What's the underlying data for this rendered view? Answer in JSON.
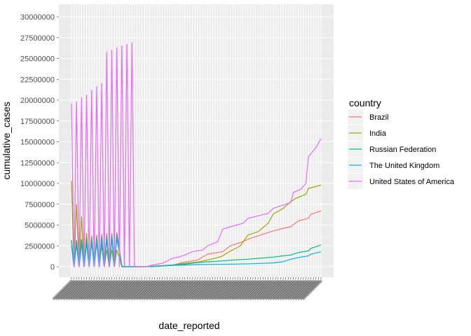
{
  "chart_data": {
    "type": "line",
    "xlabel": "date_reported",
    "ylabel": "cumulative_cases",
    "ylim": [
      0,
      30000000
    ],
    "yticks": [
      0,
      2500000,
      5000000,
      7500000,
      10000000,
      12500000,
      15000000,
      17500000,
      20000000,
      22500000,
      25000000,
      27500000,
      30000000
    ],
    "x_axis_note": "discrete date axis; ~100 tick labels overlap illegibly",
    "x_count": 100,
    "grid": true,
    "legend": {
      "title": "country",
      "placement": "right"
    },
    "series": [
      {
        "name": "Brazil",
        "color": "#F8766D",
        "points": [
          [
            0,
            3000000
          ],
          [
            1,
            0
          ],
          [
            2,
            3200000
          ],
          [
            3,
            0
          ],
          [
            4,
            3300000
          ],
          [
            5,
            0
          ],
          [
            6,
            3500000
          ],
          [
            7,
            0
          ],
          [
            8,
            3700000
          ],
          [
            9,
            0
          ],
          [
            10,
            3800000
          ],
          [
            11,
            0
          ],
          [
            12,
            3900000
          ],
          [
            13,
            0
          ],
          [
            14,
            4000000
          ],
          [
            15,
            0
          ],
          [
            16,
            4000000
          ],
          [
            17,
            0
          ],
          [
            18,
            4100000
          ],
          [
            20,
            0
          ],
          [
            27,
            0
          ],
          [
            32,
            30000
          ],
          [
            40,
            150000
          ],
          [
            44,
            500000
          ],
          [
            50,
            800000
          ],
          [
            54,
            1500000
          ],
          [
            60,
            1800000
          ],
          [
            63,
            2500000
          ],
          [
            68,
            3000000
          ],
          [
            70,
            3300000
          ],
          [
            74,
            3700000
          ],
          [
            80,
            4300000
          ],
          [
            84,
            4600000
          ],
          [
            87,
            4800000
          ],
          [
            90,
            5500000
          ],
          [
            94,
            5800000
          ],
          [
            95,
            6300000
          ],
          [
            99,
            6700000
          ]
        ]
      },
      {
        "name": "India",
        "color": "#A3A500",
        "points": [
          [
            0,
            10300000
          ],
          [
            1,
            0
          ],
          [
            2,
            7500000
          ],
          [
            3,
            0
          ],
          [
            4,
            6000000
          ],
          [
            5,
            0
          ],
          [
            6,
            4000000
          ],
          [
            7,
            0
          ],
          [
            8,
            3500000
          ],
          [
            9,
            0
          ],
          [
            10,
            3000000
          ],
          [
            11,
            0
          ],
          [
            12,
            2500000
          ],
          [
            13,
            0
          ],
          [
            14,
            2000000
          ],
          [
            15,
            0
          ],
          [
            16,
            2000000
          ],
          [
            17,
            0
          ],
          [
            18,
            2000000
          ],
          [
            20,
            0
          ],
          [
            27,
            0
          ],
          [
            34,
            100000
          ],
          [
            40,
            200000
          ],
          [
            45,
            400000
          ],
          [
            50,
            550000
          ],
          [
            54,
            800000
          ],
          [
            58,
            1100000
          ],
          [
            60,
            1300000
          ],
          [
            62,
            1700000
          ],
          [
            67,
            2500000
          ],
          [
            70,
            3800000
          ],
          [
            74,
            4200000
          ],
          [
            78,
            5200000
          ],
          [
            80,
            6300000
          ],
          [
            84,
            7000000
          ],
          [
            87,
            7800000
          ],
          [
            89,
            8200000
          ],
          [
            93,
            8700000
          ],
          [
            94,
            9400000
          ],
          [
            99,
            9800000
          ]
        ]
      },
      {
        "name": "Russian Federation",
        "color": "#00BF7D",
        "points": [
          [
            0,
            3200000
          ],
          [
            1,
            0
          ],
          [
            2,
            3100000
          ],
          [
            3,
            0
          ],
          [
            4,
            3200000
          ],
          [
            5,
            0
          ],
          [
            6,
            3300000
          ],
          [
            7,
            0
          ],
          [
            8,
            3400000
          ],
          [
            9,
            0
          ],
          [
            10,
            3500000
          ],
          [
            11,
            0
          ],
          [
            12,
            3600000
          ],
          [
            13,
            0
          ],
          [
            14,
            3700000
          ],
          [
            15,
            0
          ],
          [
            16,
            3800000
          ],
          [
            17,
            0
          ],
          [
            18,
            3900000
          ],
          [
            20,
            0
          ],
          [
            27,
            0
          ],
          [
            32,
            20000
          ],
          [
            40,
            200000
          ],
          [
            45,
            300000
          ],
          [
            50,
            500000
          ],
          [
            55,
            600000
          ],
          [
            60,
            700000
          ],
          [
            64,
            800000
          ],
          [
            70,
            900000
          ],
          [
            74,
            1000000
          ],
          [
            80,
            1150000
          ],
          [
            84,
            1300000
          ],
          [
            87,
            1400000
          ],
          [
            90,
            1700000
          ],
          [
            94,
            1900000
          ],
          [
            95,
            2200000
          ],
          [
            99,
            2600000
          ]
        ]
      },
      {
        "name": "The United Kingdom",
        "color": "#00B0F6",
        "points": [
          [
            0,
            2500000
          ],
          [
            1,
            0
          ],
          [
            2,
            2600000
          ],
          [
            3,
            0
          ],
          [
            4,
            2700000
          ],
          [
            5,
            0
          ],
          [
            6,
            2800000
          ],
          [
            7,
            0
          ],
          [
            8,
            2900000
          ],
          [
            9,
            0
          ],
          [
            10,
            3000000
          ],
          [
            11,
            0
          ],
          [
            12,
            3100000
          ],
          [
            13,
            0
          ],
          [
            14,
            3200000
          ],
          [
            15,
            0
          ],
          [
            16,
            3300000
          ],
          [
            17,
            0
          ],
          [
            18,
            3400000
          ],
          [
            20,
            0
          ],
          [
            27,
            0
          ],
          [
            32,
            10000
          ],
          [
            40,
            150000
          ],
          [
            45,
            200000
          ],
          [
            50,
            250000
          ],
          [
            60,
            290000
          ],
          [
            70,
            340000
          ],
          [
            80,
            450000
          ],
          [
            84,
            600000
          ],
          [
            87,
            900000
          ],
          [
            90,
            1100000
          ],
          [
            94,
            1300000
          ],
          [
            95,
            1500000
          ],
          [
            99,
            1800000
          ]
        ]
      },
      {
        "name": "United States of America",
        "color": "#E76BF3",
        "points": [
          [
            0,
            19600000
          ],
          [
            1,
            0
          ],
          [
            2,
            19800000
          ],
          [
            3,
            0
          ],
          [
            4,
            20300000
          ],
          [
            5,
            0
          ],
          [
            6,
            20600000
          ],
          [
            7,
            0
          ],
          [
            8,
            21200000
          ],
          [
            9,
            0
          ],
          [
            10,
            21600000
          ],
          [
            11,
            0
          ],
          [
            12,
            22000000
          ],
          [
            13,
            0
          ],
          [
            14,
            25800000
          ],
          [
            15,
            0
          ],
          [
            16,
            26000000
          ],
          [
            17,
            0
          ],
          [
            18,
            26300000
          ],
          [
            19,
            0
          ],
          [
            20,
            26500000
          ],
          [
            21,
            0
          ],
          [
            22,
            26700000
          ],
          [
            23,
            0
          ],
          [
            24,
            26900000
          ],
          [
            25,
            0
          ],
          [
            27,
            0
          ],
          [
            30,
            0
          ],
          [
            32,
            200000
          ],
          [
            36,
            400000
          ],
          [
            40,
            1000000
          ],
          [
            43,
            1200000
          ],
          [
            45,
            1400000
          ],
          [
            48,
            1800000
          ],
          [
            52,
            2000000
          ],
          [
            54,
            2500000
          ],
          [
            58,
            3000000
          ],
          [
            60,
            4500000
          ],
          [
            63,
            4800000
          ],
          [
            68,
            5200000
          ],
          [
            70,
            5800000
          ],
          [
            74,
            6100000
          ],
          [
            78,
            6400000
          ],
          [
            80,
            7000000
          ],
          [
            84,
            7400000
          ],
          [
            87,
            7700000
          ],
          [
            88,
            8900000
          ],
          [
            91,
            9300000
          ],
          [
            93,
            10000000
          ],
          [
            94,
            13200000
          ],
          [
            97,
            14300000
          ],
          [
            99,
            15400000
          ]
        ]
      }
    ]
  }
}
